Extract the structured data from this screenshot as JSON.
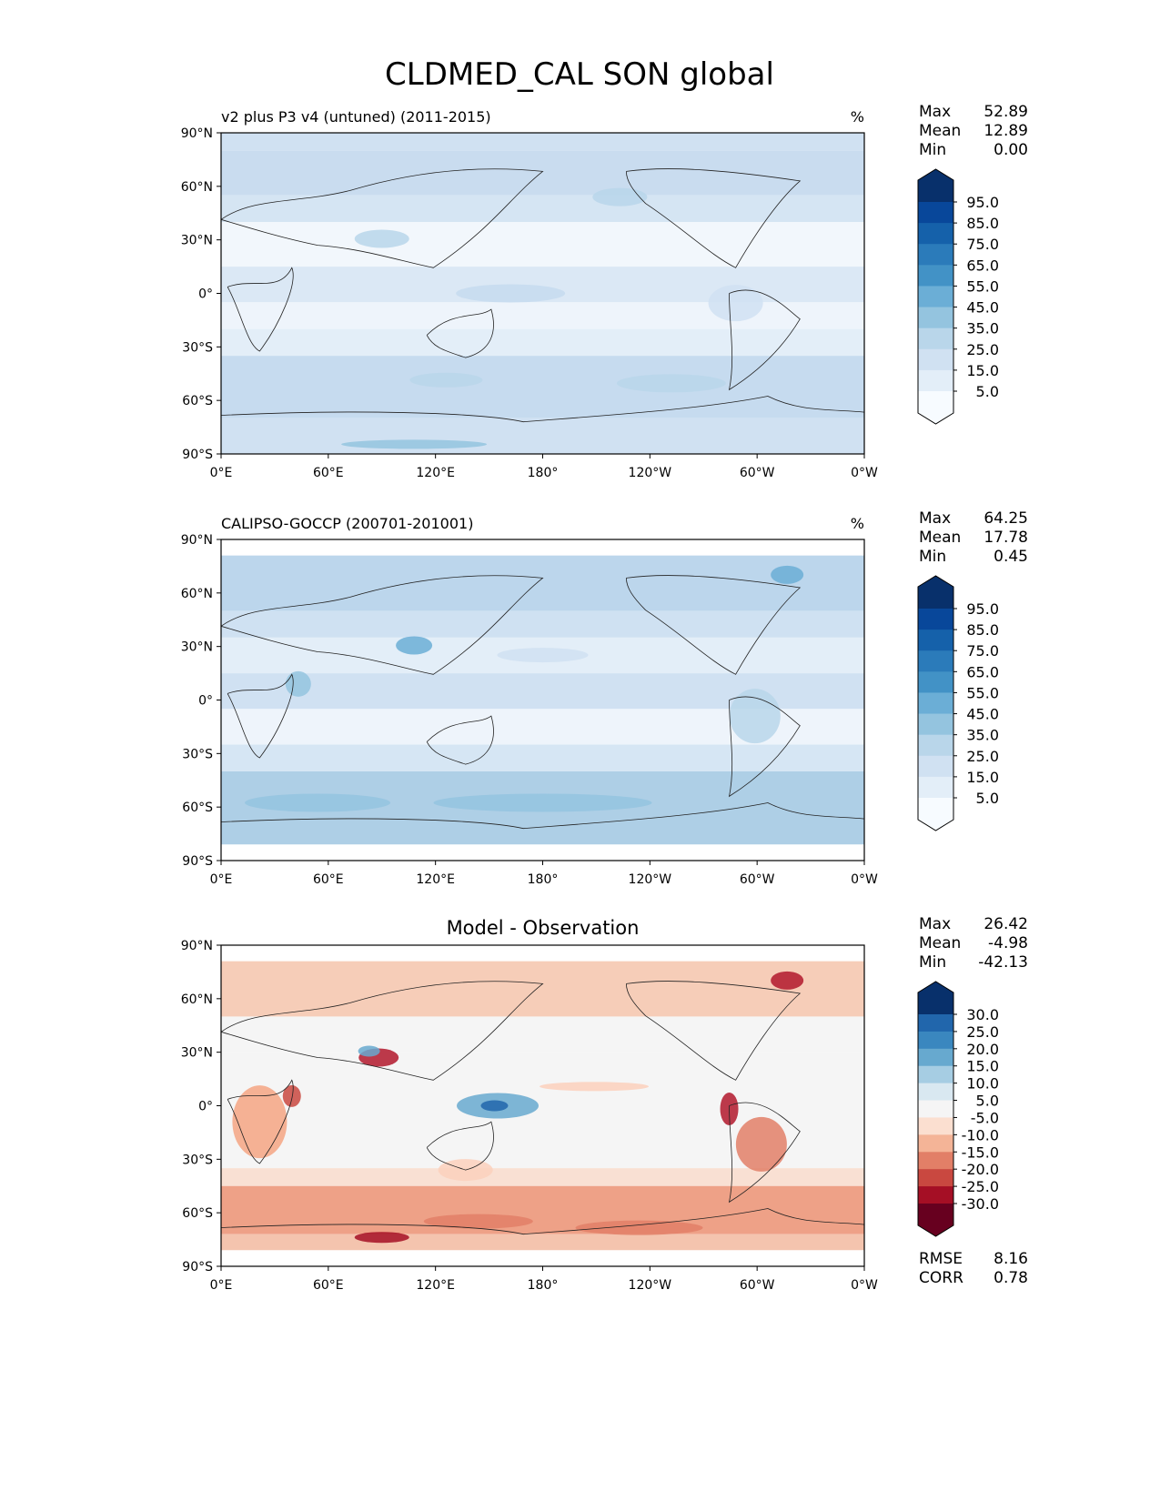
{
  "chart_data": {
    "type": "heatmap",
    "title": "CLDMED_CAL SON global",
    "x_ticks": [
      "0°E",
      "60°E",
      "120°E",
      "180°",
      "120°W",
      "60°W",
      "0°W"
    ],
    "y_ticks": [
      "90°N",
      "60°N",
      "30°N",
      "0°",
      "30°S",
      "60°S",
      "90°S"
    ],
    "panels": [
      {
        "title_left": "v2 plus P3 v4 (untuned) (2011-2015)",
        "title_center": "",
        "units": "%",
        "stats": [
          {
            "label": "Max",
            "value": "52.89"
          },
          {
            "label": "Mean",
            "value": "12.89"
          },
          {
            "label": "Min",
            "value": "0.00"
          }
        ],
        "colorbar_levels": [
          "95.0",
          "85.0",
          "75.0",
          "65.0",
          "55.0",
          "45.0",
          "35.0",
          "25.0",
          "15.0",
          "5.0"
        ],
        "colorbar_colors": [
          "#08306b",
          "#08479a",
          "#1561aa",
          "#2b7bba",
          "#4292c6",
          "#6baed6",
          "#94c4df",
          "#b9d6ea",
          "#d0e1f2",
          "#e3eef8",
          "#f7fbff"
        ],
        "zonal_bands": [
          {
            "lat": [
              80,
              90
            ],
            "color": "#d0e1f2"
          },
          {
            "lat": [
              55,
              80
            ],
            "color": "#c9dcef"
          },
          {
            "lat": [
              40,
              55
            ],
            "color": "#d5e5f3"
          },
          {
            "lat": [
              15,
              40
            ],
            "color": "#f2f7fc"
          },
          {
            "lat": [
              -5,
              15
            ],
            "color": "#dbe8f5"
          },
          {
            "lat": [
              -20,
              -5
            ],
            "color": "#eef4fb"
          },
          {
            "lat": [
              -35,
              -20
            ],
            "color": "#e3eef8"
          },
          {
            "lat": [
              -70,
              -35
            ],
            "color": "#c6dbef"
          },
          {
            "lat": [
              -90,
              -70
            ],
            "color": "#d0e1f2"
          }
        ]
      },
      {
        "title_left": "CALIPSO-GOCCP (200701-201001)",
        "title_center": "",
        "units": "%",
        "stats": [
          {
            "label": "Max",
            "value": "64.25"
          },
          {
            "label": "Mean",
            "value": "17.78"
          },
          {
            "label": "Min",
            "value": "0.45"
          }
        ],
        "colorbar_levels": [
          "95.0",
          "85.0",
          "75.0",
          "65.0",
          "55.0",
          "45.0",
          "35.0",
          "25.0",
          "15.0",
          "5.0"
        ],
        "colorbar_colors": [
          "#08306b",
          "#08479a",
          "#1561aa",
          "#2b7bba",
          "#4292c6",
          "#6baed6",
          "#94c4df",
          "#b9d6ea",
          "#d0e1f2",
          "#e3eef8",
          "#f7fbff"
        ],
        "zonal_bands": [
          {
            "lat": [
              81,
              90
            ],
            "color": "#ffffff"
          },
          {
            "lat": [
              50,
              81
            ],
            "color": "#bcd6ec"
          },
          {
            "lat": [
              35,
              50
            ],
            "color": "#cfe1f2"
          },
          {
            "lat": [
              15,
              35
            ],
            "color": "#e3eef8"
          },
          {
            "lat": [
              -5,
              15
            ],
            "color": "#d0e1f2"
          },
          {
            "lat": [
              -25,
              -5
            ],
            "color": "#eef4fb"
          },
          {
            "lat": [
              -40,
              -25
            ],
            "color": "#d6e6f4"
          },
          {
            "lat": [
              -81,
              -40
            ],
            "color": "#aecfe6"
          },
          {
            "lat": [
              -90,
              -81
            ],
            "color": "#ffffff"
          }
        ]
      },
      {
        "title_left": "",
        "title_center": "Model - Observation",
        "units": "",
        "stats": [
          {
            "label": "Max",
            "value": "26.42"
          },
          {
            "label": "Mean",
            "value": "-4.98"
          },
          {
            "label": "Min",
            "value": "-42.13"
          }
        ],
        "extra_stats": [
          {
            "label": "RMSE",
            "value": "8.16"
          },
          {
            "label": "CORR",
            "value": "0.78"
          }
        ],
        "colorbar_levels": [
          "30.0",
          "25.0",
          "20.0",
          "15.0",
          "10.0",
          "5.0",
          "-5.0",
          "-10.0",
          "-15.0",
          "-20.0",
          "-25.0",
          "-30.0"
        ],
        "colorbar_colors": [
          "#08306b",
          "#2166ac",
          "#3a87bf",
          "#67a9cf",
          "#a6cde3",
          "#d9e8f1",
          "#f5f5f5",
          "#fbdfd0",
          "#f4b497",
          "#e27f67",
          "#c94840",
          "#a50f25",
          "#67001f"
        ],
        "zonal_bands": [
          {
            "lat": [
              81,
              90
            ],
            "color": "#ffffff"
          },
          {
            "lat": [
              50,
              81
            ],
            "color": "#f6cdb8"
          },
          {
            "lat": [
              30,
              50
            ],
            "color": "#f5f5f5"
          },
          {
            "lat": [
              -35,
              30
            ],
            "color": "#f5f5f5"
          },
          {
            "lat": [
              -45,
              -35
            ],
            "color": "#f9e0d3"
          },
          {
            "lat": [
              -72,
              -45
            ],
            "color": "#eea187"
          },
          {
            "lat": [
              -81,
              -72
            ],
            "color": "#f4c4ae"
          },
          {
            "lat": [
              -90,
              -81
            ],
            "color": "#ffffff"
          }
        ]
      }
    ]
  }
}
